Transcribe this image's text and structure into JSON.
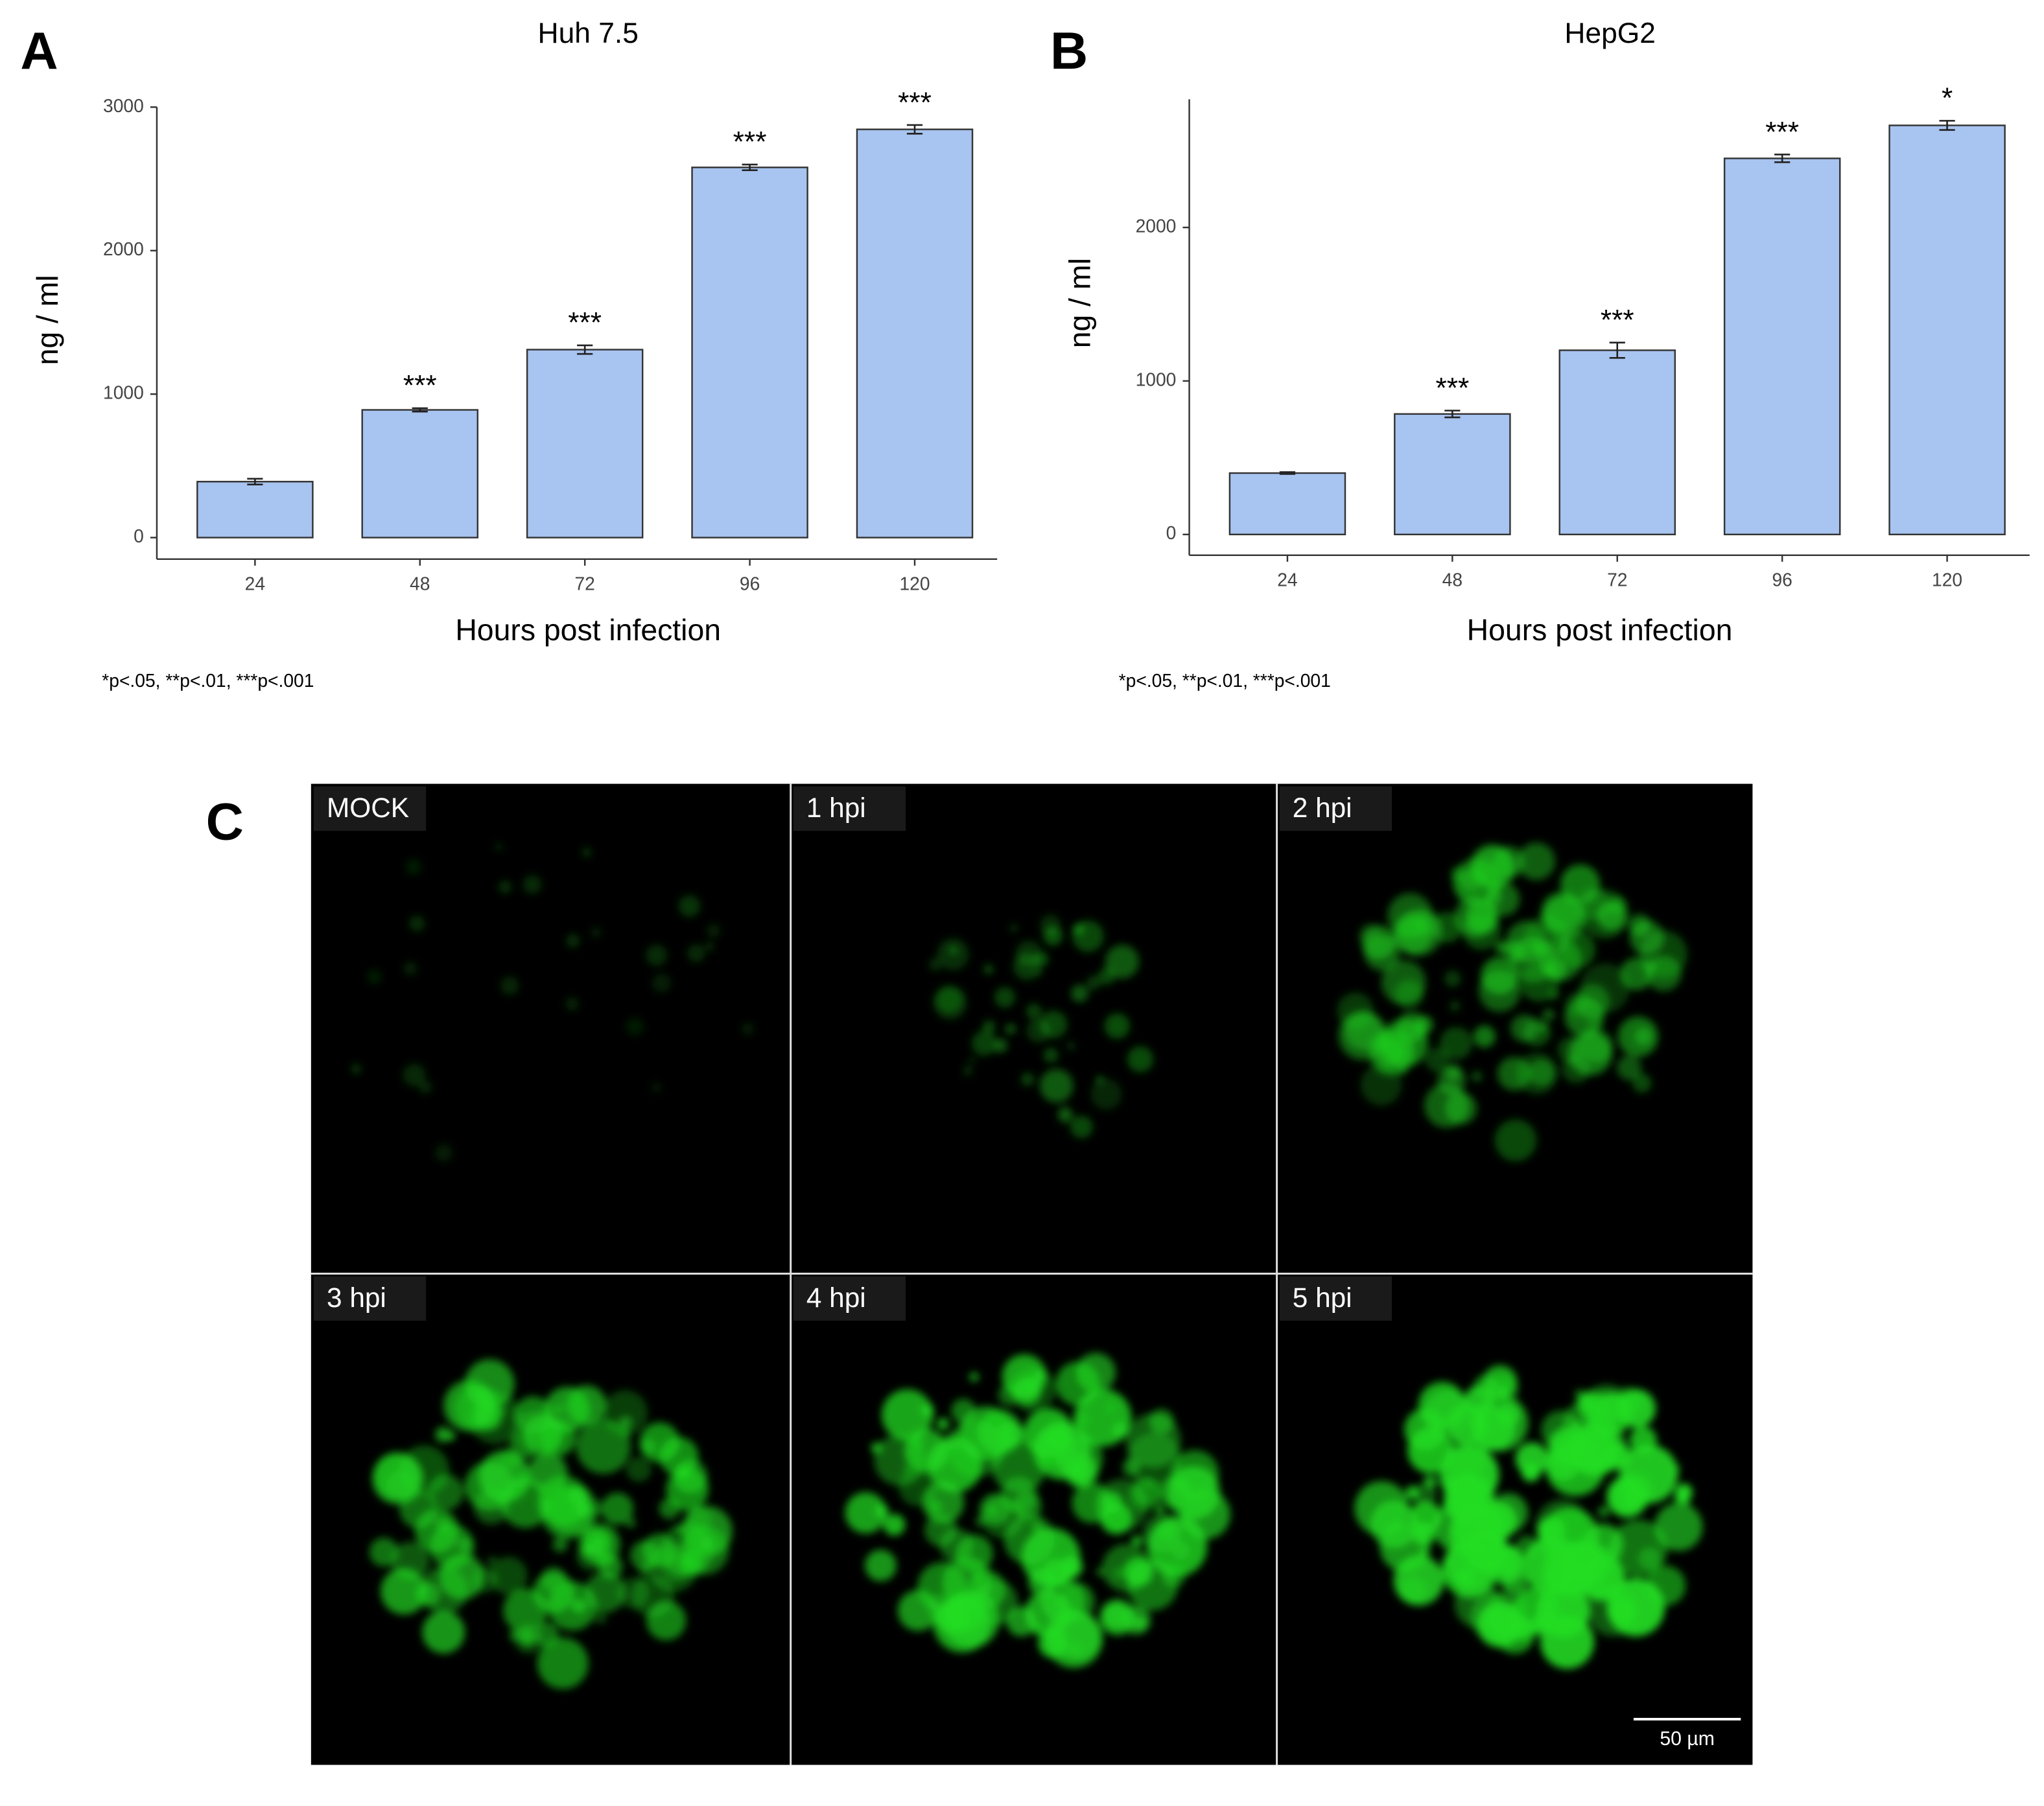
{
  "chart_data": [
    {
      "type": "bar",
      "panel": "A",
      "title": "Huh 7.5",
      "x_label": "Hours post infection",
      "y_label": "ng / ml",
      "note": "*p<.05, **p<.01, ***p<.001",
      "categories": [
        "24",
        "48",
        "72",
        "96",
        "120"
      ],
      "values": [
        390,
        890,
        1310,
        2580,
        2845
      ],
      "errors": [
        20,
        12,
        30,
        20,
        30
      ],
      "annotations": [
        null,
        "***",
        "***",
        "***",
        "***"
      ],
      "color": "#a8c4f0",
      "ylim": [
        -150,
        3000
      ],
      "yticks": [
        0,
        1000,
        2000,
        3000
      ],
      "grid": false
    },
    {
      "type": "bar",
      "panel": "B",
      "title": "HepG2",
      "x_label": "Hours post infection",
      "y_label": "ng / ml",
      "note": "*p<.05, **p<.01, ***p<.001",
      "categories": [
        "24",
        "48",
        "72",
        "96",
        "120"
      ],
      "values": [
        400,
        785,
        1200,
        2450,
        2665
      ],
      "errors": [
        6,
        22,
        50,
        25,
        30
      ],
      "annotations": [
        null,
        "***",
        "***",
        "***",
        "*"
      ],
      "color": "#a8c4f0",
      "ylim": [
        -135,
        2835
      ],
      "yticks": [
        0,
        1000,
        2000
      ],
      "grid": false
    }
  ],
  "panel_c": {
    "panel": "C",
    "tiles": [
      "MOCK",
      "1 hpi",
      "2 hpi",
      "3 hpi",
      "4 hpi",
      "5 hpi"
    ],
    "scale_bar": "50 µm"
  }
}
